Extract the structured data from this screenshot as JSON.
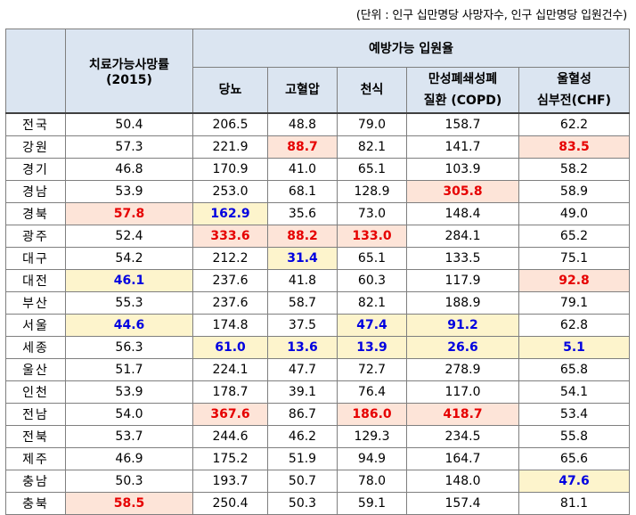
{
  "unit_note": "(단위 : 인구 십만명당 사망자수, 인구 십만명당 입원건수)",
  "headers": {
    "treatable_title": "치료가능사망률",
    "treatable_year": "(2015)",
    "preventable_title": "예방가능 입원율",
    "cols": {
      "diabetes": "당뇨",
      "hypertension": "고혈압",
      "asthma": "천식",
      "copd_line1": "만성폐쇄성폐",
      "copd_line2": "질환 (COPD)",
      "chf_line1": "울혈성",
      "chf_line2": "심부전(CHF)"
    }
  },
  "rows": [
    {
      "region": "전국",
      "v": [
        "50.4",
        "206.5",
        "48.8",
        "79.0",
        "158.7",
        "62.2"
      ]
    },
    {
      "region": "강원",
      "v": [
        "57.3",
        "221.9",
        "88.7",
        "82.1",
        "141.7",
        "83.5"
      ]
    },
    {
      "region": "경기",
      "v": [
        "46.8",
        "170.9",
        "41.0",
        "65.1",
        "103.9",
        "58.2"
      ]
    },
    {
      "region": "경남",
      "v": [
        "53.9",
        "253.0",
        "68.1",
        "128.9",
        "305.8",
        "58.9"
      ]
    },
    {
      "region": "경북",
      "v": [
        "57.8",
        "162.9",
        "35.6",
        "73.0",
        "148.4",
        "49.0"
      ]
    },
    {
      "region": "광주",
      "v": [
        "52.4",
        "333.6",
        "88.2",
        "133.0",
        "284.1",
        "65.2"
      ]
    },
    {
      "region": "대구",
      "v": [
        "54.2",
        "212.2",
        "31.4",
        "65.1",
        "133.5",
        "75.1"
      ]
    },
    {
      "region": "대전",
      "v": [
        "46.1",
        "237.6",
        "41.8",
        "60.3",
        "117.9",
        "92.8"
      ]
    },
    {
      "region": "부산",
      "v": [
        "55.3",
        "237.6",
        "58.7",
        "82.1",
        "188.9",
        "79.1"
      ]
    },
    {
      "region": "서울",
      "v": [
        "44.6",
        "174.8",
        "37.5",
        "47.4",
        "91.2",
        "62.8"
      ]
    },
    {
      "region": "세종",
      "v": [
        "56.3",
        "61.0",
        "13.6",
        "13.9",
        "26.6",
        "5.1"
      ]
    },
    {
      "region": "울산",
      "v": [
        "51.7",
        "224.1",
        "47.7",
        "72.7",
        "278.9",
        "65.8"
      ]
    },
    {
      "region": "인천",
      "v": [
        "53.9",
        "178.7",
        "39.1",
        "76.4",
        "117.0",
        "54.1"
      ]
    },
    {
      "region": "전남",
      "v": [
        "54.0",
        "367.6",
        "86.7",
        "186.0",
        "418.7",
        "53.4"
      ]
    },
    {
      "region": "전북",
      "v": [
        "53.7",
        "244.6",
        "46.2",
        "129.3",
        "234.5",
        "55.8"
      ]
    },
    {
      "region": "제주",
      "v": [
        "46.9",
        "175.2",
        "51.9",
        "94.9",
        "164.7",
        "65.6"
      ]
    },
    {
      "region": "충남",
      "v": [
        "50.3",
        "193.7",
        "50.7",
        "78.0",
        "148.0",
        "47.6"
      ]
    },
    {
      "region": "충북",
      "v": [
        "58.5",
        "250.4",
        "50.3",
        "59.1",
        "157.4",
        "81.1"
      ]
    }
  ],
  "highlights": {
    "high_color": "#e60000",
    "low_color": "#0000e0",
    "high_bg": "#fde4d8",
    "low_bg": "#fdf4cc",
    "cells": [
      {
        "row": 1,
        "col": 2,
        "kind": "high"
      },
      {
        "row": 1,
        "col": 5,
        "kind": "high"
      },
      {
        "row": 3,
        "col": 4,
        "kind": "high"
      },
      {
        "row": 4,
        "col": 0,
        "kind": "high"
      },
      {
        "row": 4,
        "col": 1,
        "kind": "low"
      },
      {
        "row": 5,
        "col": 1,
        "kind": "high"
      },
      {
        "row": 5,
        "col": 2,
        "kind": "high"
      },
      {
        "row": 5,
        "col": 3,
        "kind": "high"
      },
      {
        "row": 6,
        "col": 2,
        "kind": "low"
      },
      {
        "row": 7,
        "col": 0,
        "kind": "low"
      },
      {
        "row": 7,
        "col": 5,
        "kind": "high"
      },
      {
        "row": 9,
        "col": 0,
        "kind": "low"
      },
      {
        "row": 9,
        "col": 3,
        "kind": "low"
      },
      {
        "row": 9,
        "col": 4,
        "kind": "low"
      },
      {
        "row": 10,
        "col": 1,
        "kind": "low"
      },
      {
        "row": 10,
        "col": 2,
        "kind": "low"
      },
      {
        "row": 10,
        "col": 3,
        "kind": "low"
      },
      {
        "row": 10,
        "col": 4,
        "kind": "low"
      },
      {
        "row": 10,
        "col": 5,
        "kind": "low"
      },
      {
        "row": 13,
        "col": 1,
        "kind": "high"
      },
      {
        "row": 13,
        "col": 3,
        "kind": "high"
      },
      {
        "row": 13,
        "col": 4,
        "kind": "high"
      },
      {
        "row": 16,
        "col": 5,
        "kind": "low"
      },
      {
        "row": 17,
        "col": 0,
        "kind": "high"
      }
    ]
  }
}
